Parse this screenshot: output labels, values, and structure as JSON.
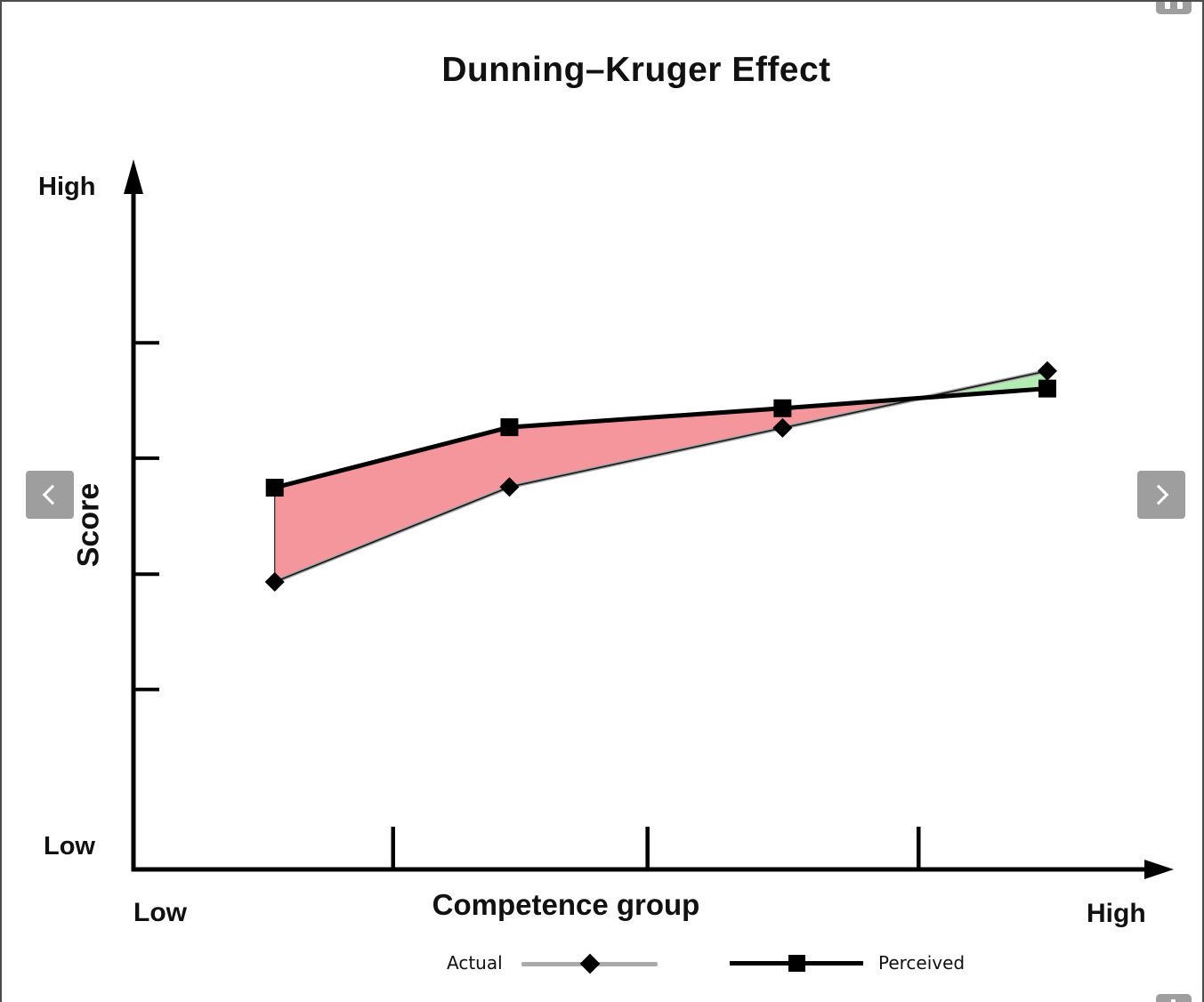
{
  "chart_data": {
    "type": "area",
    "title": "Dunning–Kruger Effect",
    "xlabel": "Competence group",
    "ylabel": "Score",
    "x_axis_endpoints": {
      "low": "Low",
      "high": "High"
    },
    "y_axis_endpoints": {
      "low": "Low",
      "high": "High"
    },
    "axis_numeric_labels_shown": false,
    "ylim": [
      0,
      100
    ],
    "x_pct": [
      13.6,
      36.2,
      62.5,
      88.0
    ],
    "series": [
      {
        "name": "Actual",
        "marker": "diamond",
        "line_color": "#a6a6a6",
        "values_pct": [
          40.9,
          54.4,
          62.8,
          70.9
        ]
      },
      {
        "name": "Perceived",
        "marker": "square",
        "line_color": "#000000",
        "values_pct": [
          54.3,
          62.9,
          65.6,
          68.4
        ]
      }
    ],
    "fill_between": {
      "perceived_above_actual_color": "#f5959c",
      "actual_above_perceived_color": "#b2ecb3"
    },
    "x_ticks_pct": [
      25.0,
      49.5,
      75.6
    ],
    "y_ticks_pct": [
      25.6,
      42.0,
      58.5,
      74.9
    ],
    "legend": {
      "position": "bottom",
      "entries": [
        "Actual",
        "Perceived"
      ]
    }
  },
  "nav": {
    "prev_icon": "chevron-left",
    "next_icon": "chevron-right"
  },
  "corner_buttons": {
    "top_right_icon": "fullscreen",
    "bottom_right_icon": "fullscreen"
  },
  "colors": {
    "axis": "#000000",
    "nav_button_bg": "#9e9e9e",
    "frame_border": "#4d4d4d"
  }
}
